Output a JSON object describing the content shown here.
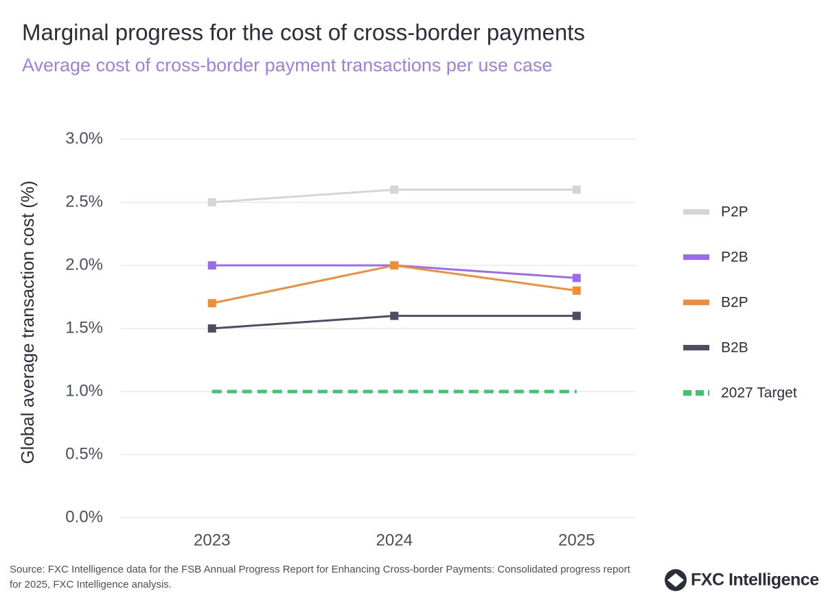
{
  "chart_data": {
    "type": "line",
    "title": "Marginal progress for the cost of cross-border payments",
    "subtitle": "Average cost of cross-border payment transactions per use case",
    "y_label": "Global average transaction cost (%)",
    "categories": [
      "2023",
      "2024",
      "2025"
    ],
    "series": [
      {
        "name": "P2P",
        "color": "#d4d4da",
        "values": [
          2.5,
          2.6,
          2.6
        ],
        "marker": "square",
        "dashed": false
      },
      {
        "name": "P2B",
        "color": "#9a6bf2",
        "values": [
          2.0,
          2.0,
          1.9
        ],
        "marker": "square",
        "dashed": false
      },
      {
        "name": "B2P",
        "color": "#f38b37",
        "values": [
          1.7,
          2.0,
          1.8
        ],
        "marker": "square",
        "dashed": false
      },
      {
        "name": "B2B",
        "color": "#4b4e60",
        "values": [
          1.5,
          1.6,
          1.6
        ],
        "marker": "square",
        "dashed": false
      },
      {
        "name": "2027 Target",
        "color": "#3dc46d",
        "values": [
          1.0,
          1.0,
          1.0
        ],
        "marker": "none",
        "dashed": true
      }
    ],
    "ylim": [
      0,
      3.0
    ],
    "yticks": [
      {
        "value": 0,
        "label": "0.0%"
      },
      {
        "value": 0.5,
        "label": "0.5%"
      },
      {
        "value": 1.0,
        "label": "1.0%"
      },
      {
        "value": 1.5,
        "label": "1.5%"
      },
      {
        "value": 2.0,
        "label": "2.0%"
      },
      {
        "value": 2.5,
        "label": "2.5%"
      },
      {
        "value": 3.0,
        "label": "3.0%"
      }
    ],
    "grid": true,
    "legend": "right",
    "source": "Source: FXC Intelligence data for the FSB Annual Progress Report for Enhancing Cross-border Payments: Consolidated progress report for 2025, FXC Intelligence analysis.",
    "logo": "FXC Intelligence"
  }
}
